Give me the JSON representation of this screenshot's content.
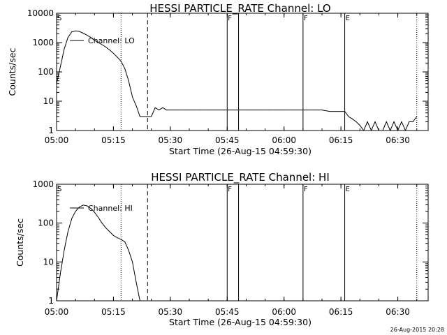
{
  "chart_data": [
    {
      "type": "line",
      "title": "HESSI PARTICLE_RATE Channel: LO",
      "xlabel": "Start Time (26-Aug-15 04:59:30)",
      "ylabel": "Counts/sec",
      "y_scale": "log",
      "ylim": [
        1,
        10000
      ],
      "xlim": [
        "05:00",
        "06:38"
      ],
      "x_ticks": [
        "05:00",
        "05:15",
        "05:30",
        "05:45",
        "06:00",
        "06:15",
        "06:30"
      ],
      "y_ticks": [
        "1",
        "10",
        "100",
        "1000",
        "10000"
      ],
      "legend": "top-left",
      "series": [
        {
          "name": "Channel: LO",
          "x": [
            "05:00",
            "05:01",
            "05:02",
            "05:03",
            "05:04",
            "05:05",
            "05:06",
            "05:07",
            "05:08",
            "05:09",
            "05:10",
            "05:11",
            "05:12",
            "05:13",
            "05:14",
            "05:15",
            "05:16",
            "05:17",
            "05:18",
            "05:19",
            "05:20",
            "05:21",
            "05:22",
            "05:23",
            "05:24",
            "05:25",
            "05:26",
            "05:27",
            "05:28",
            "05:29",
            "05:30",
            "05:32",
            "05:34",
            "05:36",
            "05:38",
            "05:40",
            "05:42",
            "05:44",
            "05:46",
            "05:48",
            "05:50",
            "05:52",
            "05:54",
            "05:56",
            "05:58",
            "06:00",
            "06:02",
            "06:04",
            "06:06",
            "06:08",
            "06:10",
            "06:12",
            "06:14",
            "06:16",
            "06:17",
            "06:18",
            "06:19",
            "06:20",
            "06:21",
            "06:22",
            "06:23",
            "06:24",
            "06:25",
            "06:26",
            "06:27",
            "06:28",
            "06:29",
            "06:30",
            "06:31",
            "06:32",
            "06:33",
            "06:34",
            "06:35"
          ],
          "values": [
            40,
            150,
            600,
            1500,
            2300,
            2500,
            2400,
            2100,
            1800,
            1500,
            1200,
            1000,
            850,
            700,
            560,
            430,
            320,
            230,
            130,
            50,
            14,
            7,
            3,
            3,
            3,
            3,
            6,
            5,
            6,
            5,
            5,
            5,
            5,
            5,
            5,
            5,
            5,
            5,
            5,
            5,
            5,
            5,
            5,
            5,
            5,
            5,
            5,
            5,
            5,
            5,
            5,
            4.5,
            4.5,
            4.5,
            3,
            2.5,
            2,
            1.5,
            1,
            2,
            1,
            2,
            1,
            1,
            2,
            1,
            2,
            1,
            2,
            1,
            2,
            2,
            3
          ]
        }
      ],
      "annotations": [
        {
          "label": "S",
          "x": "05:00"
        },
        {
          "label": "F",
          "x": "05:45"
        },
        {
          "label": "F",
          "x": "06:05"
        },
        {
          "label": "E",
          "x": "06:16"
        }
      ],
      "dotted_lines": [
        "05:17",
        "06:35"
      ],
      "dashed_lines": [
        "05:24"
      ],
      "solid_lines": [
        "05:45",
        "05:48",
        "06:05",
        "06:16"
      ]
    },
    {
      "type": "line",
      "title": "HESSI PARTICLE_RATE Channel: HI",
      "xlabel": "Start Time (26-Aug-15 04:59:30)",
      "ylabel": "Counts/sec",
      "y_scale": "log",
      "ylim": [
        1,
        1000
      ],
      "xlim": [
        "05:00",
        "06:38"
      ],
      "x_ticks": [
        "05:00",
        "05:15",
        "05:30",
        "05:45",
        "06:00",
        "06:15",
        "06:30"
      ],
      "y_ticks": [
        "1",
        "10",
        "100",
        "1000"
      ],
      "legend": "top-left",
      "series": [
        {
          "name": "Channel: HI",
          "x": [
            "05:00",
            "05:01",
            "05:02",
            "05:03",
            "05:04",
            "05:05",
            "05:06",
            "05:07",
            "05:08",
            "05:09",
            "05:10",
            "05:11",
            "05:12",
            "05:13",
            "05:14",
            "05:15",
            "05:16",
            "05:17",
            "05:18",
            "05:19",
            "05:20",
            "05:21",
            "05:22"
          ],
          "values": [
            1,
            5,
            20,
            60,
            130,
            200,
            260,
            290,
            280,
            240,
            190,
            140,
            100,
            75,
            60,
            48,
            42,
            38,
            33,
            20,
            10,
            3,
            1
          ]
        }
      ],
      "annotations": [
        {
          "label": "S",
          "x": "05:00"
        },
        {
          "label": "F",
          "x": "05:45"
        },
        {
          "label": "F",
          "x": "06:05"
        },
        {
          "label": "E",
          "x": "06:16"
        }
      ],
      "dotted_lines": [
        "05:17",
        "06:35"
      ],
      "dashed_lines": [
        "05:24"
      ],
      "solid_lines": [
        "05:45",
        "05:48",
        "06:05",
        "06:16"
      ]
    }
  ],
  "footer": {
    "timestamp": "26-Aug-2015 20:28"
  }
}
